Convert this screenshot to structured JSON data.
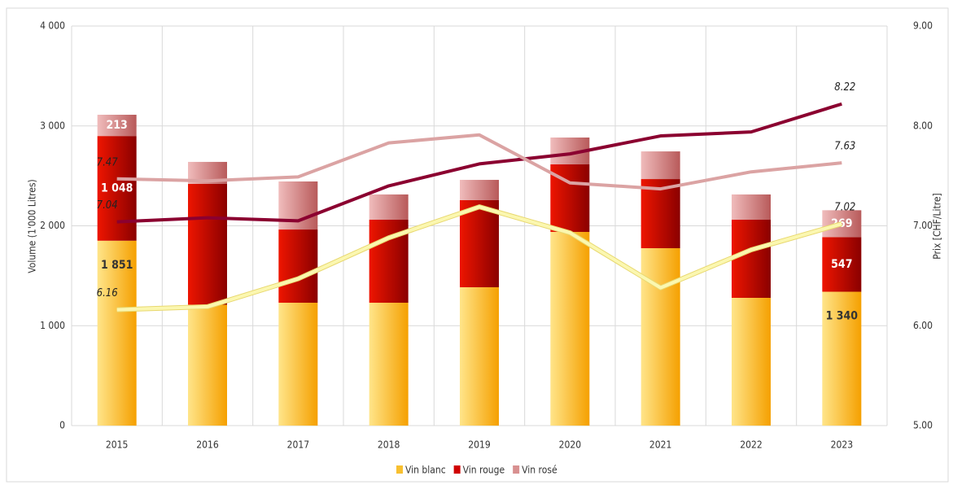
{
  "chart_data": {
    "type": "bar",
    "stacked": true,
    "ylabel": "Volume  (1'000 Litres)",
    "y2label": "Prix [CHF/Litre]",
    "categories": [
      "2015",
      "2016",
      "2017",
      "2018",
      "2019",
      "2020",
      "2021",
      "2022",
      "2023"
    ],
    "series": [
      {
        "name": "Vin blanc",
        "color": "url(#g0)",
        "legend_color": "#f8c030",
        "label_color": "#333333",
        "values": [
          1851,
          1210,
          1230,
          1230,
          1385,
          1939,
          1776,
          1279,
          1340
        ],
        "value_labels": [
          "1 851",
          null,
          null,
          null,
          null,
          null,
          null,
          null,
          "1 340"
        ]
      },
      {
        "name": "Vin rouge",
        "color": "url(#g1)",
        "legend_color": "#d00000",
        "label_color": "#ffffff",
        "values": [
          1048,
          1210,
          733,
          831,
          872,
          676,
          692,
          782,
          547
        ],
        "value_labels": [
          "1 048",
          null,
          null,
          null,
          null,
          null,
          null,
          null,
          "547"
        ]
      },
      {
        "name": "Vin rosé",
        "color": "url(#g2)",
        "legend_color": "#d89090",
        "label_color": "#ffffff",
        "values": [
          213,
          220,
          481,
          253,
          203,
          269,
          277,
          253,
          269
        ],
        "value_labels": [
          "213",
          null,
          null,
          null,
          null,
          null,
          null,
          null,
          "269"
        ]
      }
    ],
    "lines": [
      {
        "type": "line",
        "axis": "y2",
        "color": "#fbf7b0",
        "outline": "#e8d870",
        "values": [
          6.16,
          6.19,
          6.47,
          6.88,
          7.19,
          6.93,
          6.38,
          6.76,
          7.02
        ],
        "value_labels": [
          "6.16",
          null,
          null,
          null,
          null,
          null,
          null,
          null,
          "7.02"
        ]
      },
      {
        "type": "line",
        "axis": "y2",
        "color": "#8b0030",
        "values": [
          7.04,
          7.08,
          7.05,
          7.4,
          7.62,
          7.72,
          7.9,
          7.94,
          8.22
        ],
        "value_labels": [
          "7.04",
          null,
          null,
          null,
          null,
          null,
          null,
          null,
          "8.22"
        ]
      },
      {
        "type": "line",
        "axis": "y2",
        "color": "#dba3a3",
        "values": [
          7.47,
          7.45,
          7.49,
          7.83,
          7.91,
          7.43,
          7.37,
          7.54,
          7.63
        ],
        "value_labels": [
          "7.47",
          null,
          null,
          null,
          null,
          null,
          null,
          null,
          "7.63"
        ]
      }
    ],
    "ylim": [
      0,
      4000
    ],
    "yticks": [
      0,
      {
        "value": 1000,
        "label": "1 000"
      },
      {
        "value": 2000,
        "label": "2 000"
      },
      {
        "value": 3000,
        "label": "3 000"
      },
      {
        "value": 4000,
        "label": "4 000"
      }
    ],
    "y2lim": [
      5,
      9
    ],
    "y2ticks": [
      {
        "value": 5,
        "label": "5.00"
      },
      {
        "value": 6,
        "label": "6.00"
      },
      {
        "value": 7,
        "label": "7.00"
      },
      {
        "value": 8,
        "label": "8.00"
      },
      {
        "value": 9,
        "label": "9.00"
      }
    ],
    "grid": true,
    "legend": "bottom"
  }
}
